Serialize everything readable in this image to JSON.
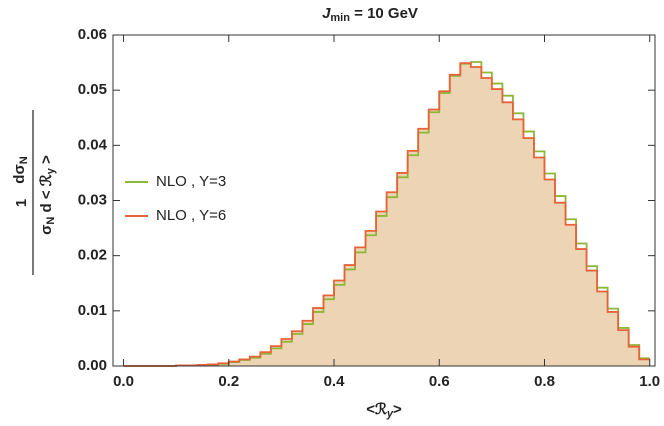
{
  "chart_data": {
    "type": "histogram",
    "title_symbol": "J",
    "title_subscript": "min",
    "title_rest": " = 10 GeV",
    "x_label": [
      "<ℛ",
      "y",
      ">"
    ],
    "y_label_prefix": "1",
    "y_label_numerator": [
      "dσ",
      "N"
    ],
    "y_label_denominator": [
      "σ",
      "N",
      "  d < ℛ",
      "y",
      " >"
    ],
    "bins": [
      0,
      0.02,
      0.04,
      0.06,
      0.08,
      0.1,
      0.12,
      0.14,
      0.16,
      0.18,
      0.2,
      0.22,
      0.24,
      0.26,
      0.28,
      0.3,
      0.32,
      0.34,
      0.36,
      0.38,
      0.4,
      0.42,
      0.44,
      0.46,
      0.48,
      0.5,
      0.52,
      0.54,
      0.56,
      0.58,
      0.6,
      0.62,
      0.64,
      0.66,
      0.68,
      0.7,
      0.72,
      0.74,
      0.76,
      0.78,
      0.8,
      0.82,
      0.84,
      0.86,
      0.88,
      0.9,
      0.92,
      0.94,
      0.96,
      0.98,
      1
    ],
    "series": [
      {
        "name": "NLO , Y=3",
        "color": "#8cb83a",
        "values": [
          0,
          0,
          0,
          0,
          0,
          0.0001,
          0.0001,
          0.0001,
          0.0002,
          0.0004,
          0.0007,
          0.0011,
          0.0015,
          0.0022,
          0.0032,
          0.0044,
          0.0058,
          0.0076,
          0.0098,
          0.0121,
          0.0147,
          0.0175,
          0.0206,
          0.0237,
          0.0272,
          0.0306,
          0.0342,
          0.0382,
          0.0423,
          0.046,
          0.0495,
          0.0526,
          0.0548,
          0.0551,
          0.0532,
          0.0512,
          0.049,
          0.0458,
          0.0425,
          0.0389,
          0.0349,
          0.0308,
          0.0266,
          0.0222,
          0.0181,
          0.0142,
          0.0104,
          0.0069,
          0.0038,
          0.0014
        ]
      },
      {
        "name": "NLO , Y=6",
        "color": "#e8623a",
        "values": [
          0,
          0,
          0,
          0,
          0,
          0.0001,
          0.0001,
          0.0002,
          0.0003,
          0.0005,
          0.0008,
          0.0012,
          0.0017,
          0.0025,
          0.0036,
          0.0049,
          0.0063,
          0.0082,
          0.0105,
          0.0128,
          0.0155,
          0.0183,
          0.0215,
          0.0245,
          0.028,
          0.0315,
          0.035,
          0.039,
          0.043,
          0.0465,
          0.0498,
          0.0528,
          0.0549,
          0.0542,
          0.0522,
          0.0502,
          0.0478,
          0.0447,
          0.0413,
          0.0378,
          0.0338,
          0.0296,
          0.0256,
          0.0212,
          0.0173,
          0.0135,
          0.0098,
          0.0065,
          0.0035,
          0.0012
        ]
      }
    ],
    "fill_color": "#ecd4b4",
    "xlim": [
      -0.02,
      1.01
    ],
    "ylim": [
      0,
      0.06
    ],
    "xticks": [
      {
        "value": 0,
        "label": "0.0"
      },
      0.2,
      0.4,
      0.6,
      0.8,
      {
        "value": 1,
        "label": "1.0"
      }
    ],
    "yticks": [
      {
        "value": 0,
        "label": "0.00"
      },
      {
        "value": 0.01,
        "label": "0.01"
      },
      {
        "value": 0.02,
        "label": "0.02"
      },
      {
        "value": 0.03,
        "label": "0.03"
      },
      {
        "value": 0.04,
        "label": "0.04"
      },
      {
        "value": 0.05,
        "label": "0.05"
      },
      {
        "value": 0.06,
        "label": "0.06"
      }
    ],
    "legend": "left"
  }
}
